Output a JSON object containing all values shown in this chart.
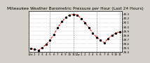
{
  "title": "Milwaukee Weather Barometric Pressure per Hour (Last 24 Hours)",
  "x_values": [
    0,
    1,
    2,
    3,
    4,
    5,
    6,
    7,
    8,
    9,
    10,
    11,
    12,
    13,
    14,
    15,
    16,
    17,
    18,
    19,
    20,
    21,
    22,
    23
  ],
  "y_values": [
    29.48,
    29.46,
    29.44,
    29.5,
    29.58,
    29.68,
    29.82,
    29.98,
    30.12,
    30.22,
    30.28,
    30.3,
    30.28,
    30.2,
    30.1,
    29.98,
    29.85,
    29.75,
    29.68,
    29.62,
    29.72,
    29.8,
    29.85,
    29.88
  ],
  "line_color": "#ff0000",
  "marker_color": "#000000",
  "bg_color": "#d4d0c8",
  "plot_bg_color": "#ffffff",
  "grid_color": "#808080",
  "ylim_min": 29.4,
  "ylim_max": 30.38,
  "ytick_values": [
    29.4,
    29.5,
    29.6,
    29.7,
    29.8,
    29.9,
    30.0,
    30.1,
    30.2,
    30.3
  ],
  "ytick_labels": [
    "29.4",
    "29.5",
    "29.6",
    "29.7",
    "29.8",
    "29.9",
    "30.0",
    "30.1",
    "30.2",
    "30.3"
  ],
  "xlabel_hours": [
    "12a",
    "1",
    "2",
    "3",
    "4",
    "5",
    "6",
    "7",
    "8",
    "9",
    "10",
    "11",
    "12p",
    "1",
    "2",
    "3",
    "4",
    "5",
    "6",
    "7",
    "8",
    "9",
    "10",
    "11"
  ],
  "vline_positions": [
    5,
    11,
    17,
    23
  ],
  "title_fontsize": 4.2,
  "tick_fontsize": 3.0,
  "linewidth": 0.7,
  "marker_size": 2.0
}
